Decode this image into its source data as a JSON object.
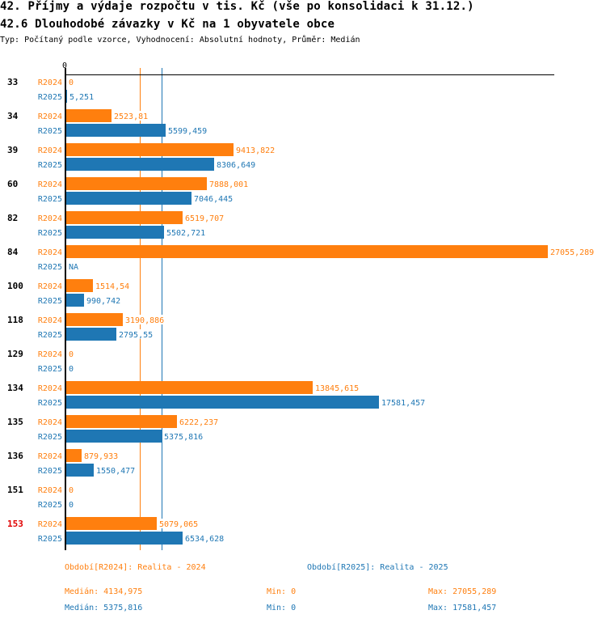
{
  "header": {
    "title": "42. Příjmy a výdaje rozpočtu v tis. Kč (vše po konsolidaci k 31.12.)",
    "subtitle": "42.6 Dlouhodobé závazky v Kč na 1 obyvatele obce",
    "meta": "Typ: Počítaný podle vzorce, Vyhodnocení: Absolutní hodnoty, Průměr: Medián"
  },
  "colors": {
    "R2024": "#ff7f0e",
    "R2025": "#1f77b4",
    "group_label": "#000000",
    "group_label_highlight": "#e00000",
    "axis": "#000000"
  },
  "chart_data": {
    "type": "bar",
    "orientation": "horizontal",
    "title": "42.6 Dlouhodobé závazky v Kč na 1 obyvatele obce",
    "xlabel": "",
    "ylabel": "",
    "x_tick_labels": [
      "0"
    ],
    "xlim": [
      0,
      27055.289
    ],
    "grid": false,
    "categories": [
      "33",
      "34",
      "39",
      "60",
      "82",
      "84",
      "100",
      "118",
      "129",
      "134",
      "135",
      "136",
      "151",
      "153"
    ],
    "highlighted_category": "153",
    "series": [
      {
        "name": "R2024",
        "values": [
          0,
          2523.81,
          9413.822,
          7888.001,
          6519.707,
          27055.289,
          1514.54,
          3190.886,
          0,
          13845.615,
          6222.237,
          879.933,
          0,
          5079.065
        ],
        "labels": [
          "0",
          "2523,81",
          "9413,822",
          "7888,001",
          "6519,707",
          "27055,289",
          "1514,54",
          "3190,886",
          "0",
          "13845,615",
          "6222,237",
          "879,933",
          "0",
          "5079,065"
        ]
      },
      {
        "name": "R2025",
        "values": [
          5.251,
          5599.459,
          8306.649,
          7046.445,
          5502.721,
          null,
          990.742,
          2795.55,
          0,
          17581.457,
          5375.816,
          1550.477,
          0,
          6534.628
        ],
        "labels": [
          "5,251",
          "5599,459",
          "8306,649",
          "7046,445",
          "5502,721",
          "NA",
          "990,742",
          "2795,55",
          "0",
          "17581,457",
          "5375,816",
          "1550,477",
          "0",
          "6534,628"
        ]
      }
    ],
    "median_lines": [
      {
        "series": "R2024",
        "value": 4134.975
      },
      {
        "series": "R2025",
        "value": 5375.816
      }
    ],
    "legend": [
      {
        "series": "R2024",
        "text": "Období[R2024]: Realita - 2024"
      },
      {
        "series": "R2025",
        "text": "Období[R2025]: Realita - 2025"
      }
    ],
    "stats": [
      {
        "series": "R2024",
        "median": "Medián: 4134,975",
        "min": "Min: 0",
        "max": "Max: 27055,289"
      },
      {
        "series": "R2025",
        "median": "Medián: 5375,816",
        "min": "Min: 0",
        "max": "Max: 17581,457"
      }
    ]
  }
}
